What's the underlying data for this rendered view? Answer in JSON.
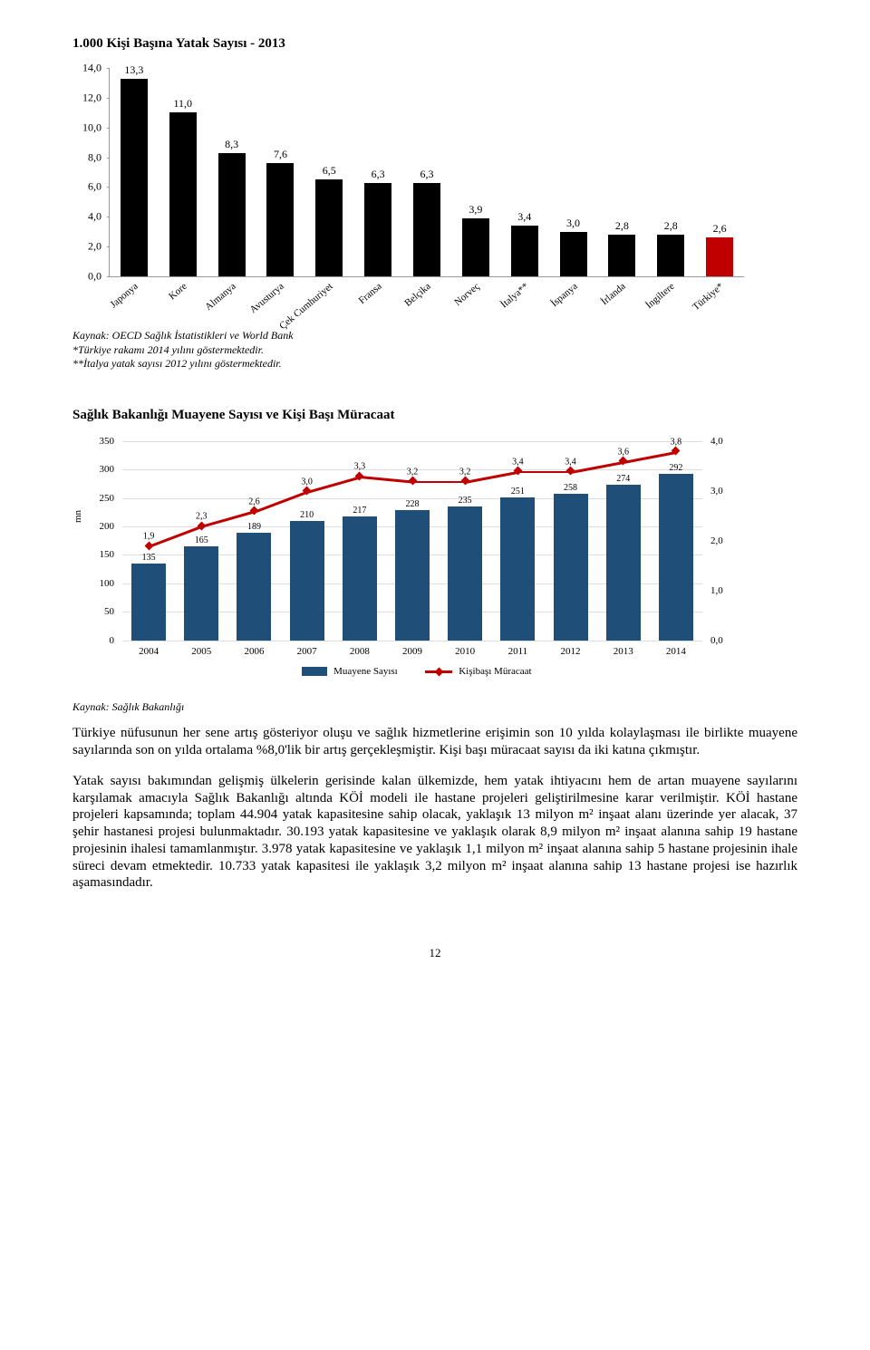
{
  "chart1": {
    "title": "1.000 Kişi Başına Yatak Sayısı - 2013",
    "type": "bar",
    "ylim": [
      0,
      14
    ],
    "ytick_step": 2.0,
    "ytick_format": ",0",
    "categories": [
      "Japonya",
      "Kore",
      "Almanya",
      "Avusturya",
      "Çek Cumhuriyet",
      "Fransa",
      "Belçika",
      "Norveç",
      "İtalya**",
      "İspanya",
      "İrlanda",
      "İngiltere",
      "Türkiye*"
    ],
    "values": [
      13.3,
      11.0,
      8.3,
      7.6,
      6.5,
      6.3,
      6.3,
      3.9,
      3.4,
      3.0,
      2.8,
      2.8,
      2.6
    ],
    "value_labels": [
      "13,3",
      "11,0",
      "8,3",
      "7,6",
      "6,5",
      "6,3",
      "6,3",
      "3,9",
      "3,4",
      "3,0",
      "2,8",
      "2,8",
      "2,6"
    ],
    "bar_default_color": "#000000",
    "bar_highlight_index": 12,
    "bar_highlight_color": "#c00000",
    "source_lines": [
      "Kaynak: OECD Sağlık İstatistikleri ve World Bank",
      "*Türkiye rakamı 2014 yılını göstermektedir.",
      "**İtalya yatak sayısı 2012 yılını göstermektedir."
    ]
  },
  "chart2": {
    "title": "Sağlık Bakanlığı Muayene Sayısı ve Kişi Başı Müracaat",
    "type": "combo-bar-line",
    "categories": [
      "2004",
      "2005",
      "2006",
      "2007",
      "2008",
      "2009",
      "2010",
      "2011",
      "2012",
      "2013",
      "2014"
    ],
    "yaxis_left": {
      "label": "mn",
      "min": 0,
      "max": 350,
      "ticks": [
        0,
        50,
        100,
        150,
        200,
        250,
        300,
        350
      ]
    },
    "yaxis_right": {
      "min": 0,
      "max": 4.0,
      "ticks": [
        "0,0",
        "1,0",
        "2,0",
        "3,0",
        "4,0"
      ],
      "tick_vals": [
        0,
        1,
        2,
        3,
        4
      ]
    },
    "bars": {
      "name": "Muayene Sayısı",
      "values": [
        135,
        165,
        189,
        210,
        217,
        228,
        235,
        251,
        258,
        274,
        292
      ],
      "color": "#1f4e79"
    },
    "line": {
      "name": "Kişibaşı Müracaat",
      "values": [
        1.9,
        2.3,
        2.6,
        3.0,
        3.3,
        3.2,
        3.2,
        3.4,
        3.4,
        3.6,
        3.8
      ],
      "labels": [
        "1,9",
        "2,3",
        "2,6",
        "3,0",
        "3,3",
        "3,2",
        "3,2",
        "3,4",
        "3,4",
        "3,6",
        "3,8"
      ],
      "color": "#c00000"
    },
    "source": "Kaynak: Sağlık Bakanlığı"
  },
  "paragraphs": [
    "Türkiye nüfusunun her sene artış gösteriyor oluşu ve sağlık hizmetlerine erişimin son 10 yılda kolaylaşması ile birlikte muayene sayılarında son on yılda ortalama %8,0'lik bir artış gerçekleşmiştir. Kişi başı müracaat sayısı da iki katına çıkmıştır.",
    "Yatak sayısı bakımından gelişmiş ülkelerin gerisinde kalan ülkemizde, hem yatak ihtiyacını hem de artan muayene sayılarını karşılamak amacıyla Sağlık Bakanlığı altında KÖİ modeli ile hastane projeleri geliştirilmesine karar verilmiştir. KÖİ hastane projeleri kapsamında; toplam 44.904 yatak kapasitesine sahip olacak, yaklaşık 13 milyon m² inşaat alanı üzerinde yer alacak, 37 şehir hastanesi projesi bulunmaktadır. 30.193 yatak kapasitesine ve yaklaşık olarak 8,9 milyon m² inşaat alanına sahip 19 hastane projesinin ihalesi tamamlanmıştır. 3.978 yatak kapasitesine ve yaklaşık 1,1 milyon m² inşaat alanına sahip 5 hastane projesinin ihale süreci devam etmektedir. 10.733 yatak kapasitesi ile yaklaşık 3,2 milyon m² inşaat alanına sahip 13 hastane projesi ise hazırlık aşamasındadır."
  ],
  "page_number": "12"
}
